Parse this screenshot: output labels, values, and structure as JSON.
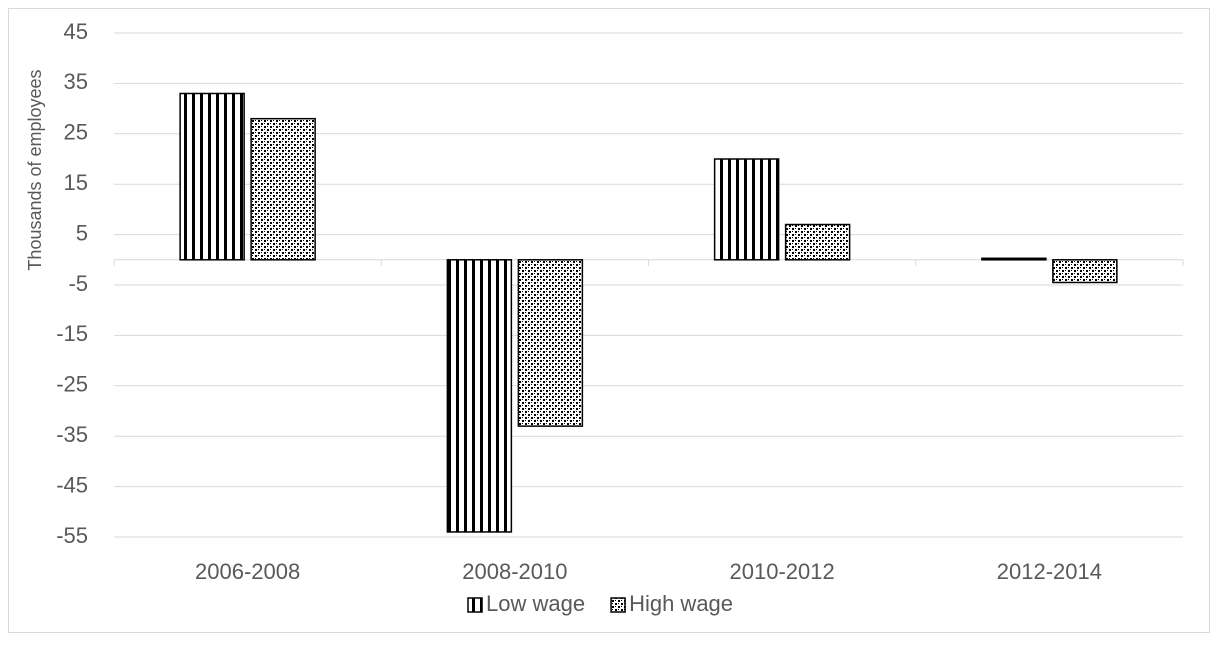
{
  "chart_data": {
    "type": "bar",
    "y_axis_label": "Thousands of employees",
    "categories": [
      "2006-2008",
      "2008-2010",
      "2010-2012",
      "2012-2014"
    ],
    "series": [
      {
        "name": "Low wage",
        "color": "#000000",
        "pattern": "vertical-lines",
        "values": [
          33,
          -54,
          20,
          0.3
        ]
      },
      {
        "name": "High wage",
        "color": "#000000",
        "pattern": "checker",
        "values": [
          28,
          -33,
          7,
          -4.5
        ]
      }
    ],
    "ylim": [
      -55,
      45
    ],
    "yticks": [
      -55,
      -45,
      -35,
      -25,
      -15,
      -5,
      5,
      15,
      25,
      35,
      45
    ],
    "grid": true,
    "legend": "bottom"
  }
}
